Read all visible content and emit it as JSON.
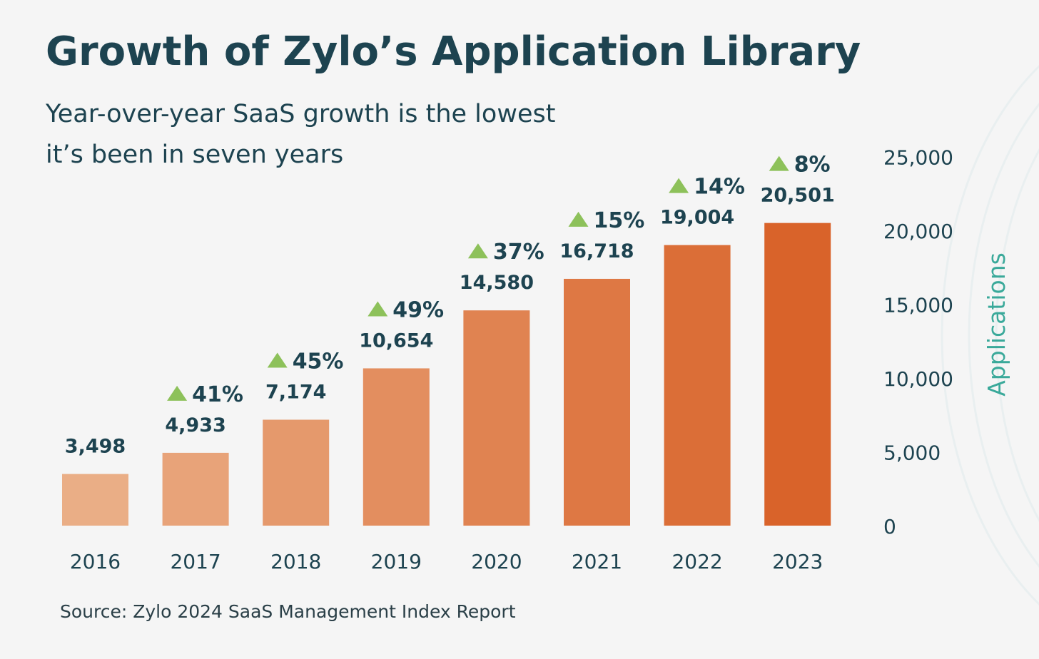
{
  "chart_data": {
    "type": "bar",
    "title": "Growth of Zylo’s Application Library",
    "subtitle": "Year-over-year SaaS growth is the lowest it’s been in seven years",
    "categories": [
      "2016",
      "2017",
      "2018",
      "2019",
      "2020",
      "2021",
      "2022",
      "2023"
    ],
    "values": [
      3498,
      4933,
      7174,
      10654,
      14580,
      16718,
      19004,
      20501
    ],
    "value_labels": [
      "3,498",
      "4,933",
      "7,174",
      "10,654",
      "14,580",
      "16,718",
      "19,004",
      "20,501"
    ],
    "growth_labels": [
      "",
      "41%",
      "45%",
      "49%",
      "37%",
      "15%",
      "14%",
      "8%"
    ],
    "ylabel": "Applications",
    "ylim": [
      0,
      25000
    ],
    "yticks": [
      0,
      5000,
      10000,
      15000,
      20000,
      25000
    ],
    "ytick_labels": [
      "0",
      "5,000",
      "10,000",
      "15,000",
      "20,000",
      "25,000"
    ],
    "y_axis_position": "right",
    "grid": false,
    "colors": {
      "bar_start": "#eaae86",
      "bar_end": "#d9632a",
      "growth_arrow": "#8dc15a",
      "text": "#1d4350",
      "ylabel": "#3aa99a"
    },
    "source": "Source: Zylo 2024 SaaS Management Index Report"
  }
}
